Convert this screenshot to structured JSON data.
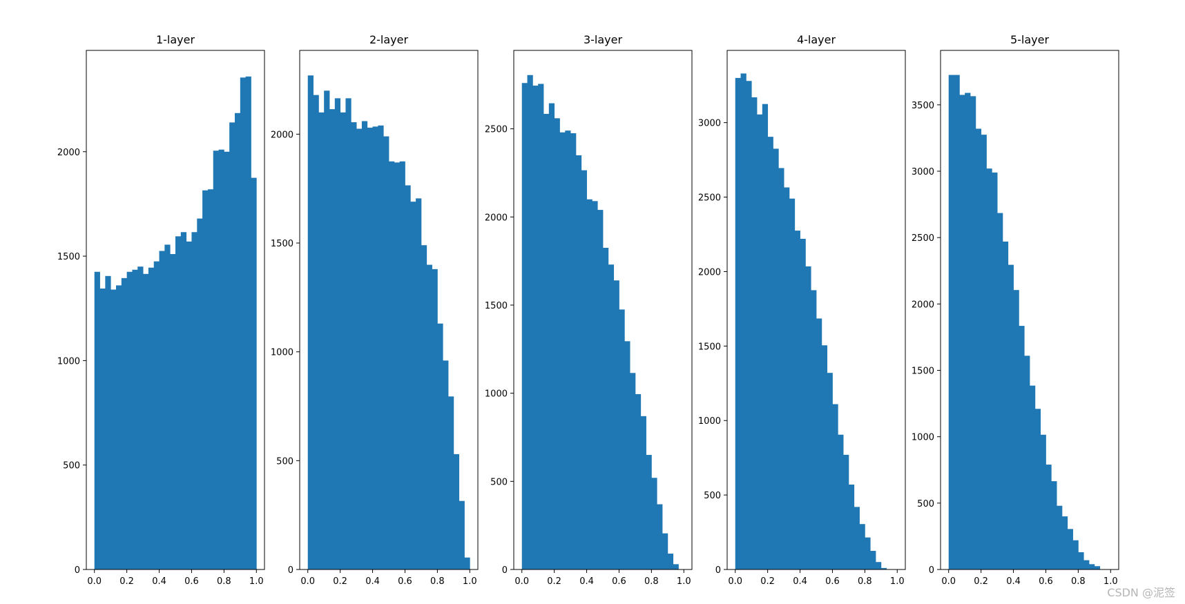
{
  "watermark": "CSDN @泥签",
  "colors": {
    "bar": "#1f77b4",
    "axes": "#000000",
    "background": "#ffffff"
  },
  "chart_data": [
    {
      "type": "bar",
      "title": "1-layer",
      "xlabel": "",
      "ylabel": "",
      "xlim": [
        -0.05,
        1.05
      ],
      "ylim": [
        0,
        2485
      ],
      "xticks": [
        "0.0",
        "0.2",
        "0.4",
        "0.6",
        "0.8",
        "1.0"
      ],
      "yticks": [
        0,
        500,
        1000,
        1500,
        2000
      ],
      "bin_edges": [
        0,
        1
      ],
      "values": [
        1425,
        1345,
        1405,
        1340,
        1360,
        1395,
        1425,
        1435,
        1450,
        1415,
        1445,
        1475,
        1525,
        1555,
        1510,
        1595,
        1615,
        1570,
        1615,
        1680,
        1815,
        1820,
        2005,
        2010,
        2000,
        2140,
        2185,
        2355,
        2360,
        1875
      ]
    },
    {
      "type": "bar",
      "title": "2-layer",
      "xlabel": "",
      "ylabel": "",
      "xlim": [
        -0.05,
        1.05
      ],
      "ylim": [
        0,
        2385
      ],
      "xticks": [
        "0.0",
        "0.2",
        "0.4",
        "0.6",
        "0.8",
        "1.0"
      ],
      "yticks": [
        0,
        500,
        1000,
        1500,
        2000
      ],
      "bin_edges": [
        0,
        1
      ],
      "values": [
        2270,
        2180,
        2100,
        2200,
        2115,
        2165,
        2100,
        2165,
        2055,
        2025,
        2060,
        2030,
        2035,
        2040,
        1990,
        1875,
        1870,
        1875,
        1765,
        1690,
        1705,
        1490,
        1400,
        1380,
        1130,
        960,
        795,
        530,
        315,
        55
      ]
    },
    {
      "type": "bar",
      "title": "3-layer",
      "xlabel": "",
      "ylabel": "",
      "xlim": [
        -0.05,
        1.05
      ],
      "ylim": [
        0,
        2945
      ],
      "xticks": [
        "0.0",
        "0.2",
        "0.4",
        "0.6",
        "0.8",
        "1.0"
      ],
      "yticks": [
        0,
        500,
        1000,
        1500,
        2000,
        2500
      ],
      "bin_edges": [
        0,
        1
      ],
      "values": [
        2760,
        2805,
        2745,
        2755,
        2585,
        2645,
        2560,
        2480,
        2490,
        2475,
        2350,
        2265,
        2100,
        2090,
        2040,
        1825,
        1730,
        1640,
        1475,
        1295,
        1115,
        995,
        870,
        650,
        520,
        370,
        205,
        90,
        30,
        0
      ]
    },
    {
      "type": "bar",
      "title": "4-layer",
      "xlabel": "",
      "ylabel": "",
      "xlim": [
        -0.05,
        1.05
      ],
      "ylim": [
        0,
        3485
      ],
      "xticks": [
        "0.0",
        "0.2",
        "0.4",
        "0.6",
        "0.8",
        "1.0"
      ],
      "yticks": [
        0,
        500,
        1000,
        1500,
        2000,
        2500,
        3000
      ],
      "bin_edges": [
        0,
        1
      ],
      "values": [
        3300,
        3330,
        3280,
        3170,
        3055,
        3125,
        2905,
        2825,
        2695,
        2565,
        2490,
        2275,
        2220,
        2035,
        1875,
        1685,
        1505,
        1320,
        1110,
        905,
        770,
        570,
        420,
        305,
        215,
        125,
        50,
        10,
        0,
        0
      ]
    },
    {
      "type": "bar",
      "title": "5-layer",
      "xlabel": "",
      "ylabel": "",
      "xlim": [
        -0.05,
        1.05
      ],
      "ylim": [
        0,
        3910
      ],
      "xticks": [
        "0.0",
        "0.2",
        "0.4",
        "0.6",
        "0.8",
        "1.0"
      ],
      "yticks": [
        0,
        500,
        1000,
        1500,
        2000,
        2500,
        3000,
        3500
      ],
      "bin_edges": [
        0,
        1
      ],
      "values": [
        3725,
        3725,
        3575,
        3590,
        3565,
        3320,
        3275,
        3020,
        2990,
        2685,
        2470,
        2295,
        2105,
        1835,
        1610,
        1385,
        1210,
        1015,
        790,
        665,
        480,
        400,
        305,
        220,
        130,
        70,
        40,
        25,
        0,
        0
      ]
    }
  ]
}
